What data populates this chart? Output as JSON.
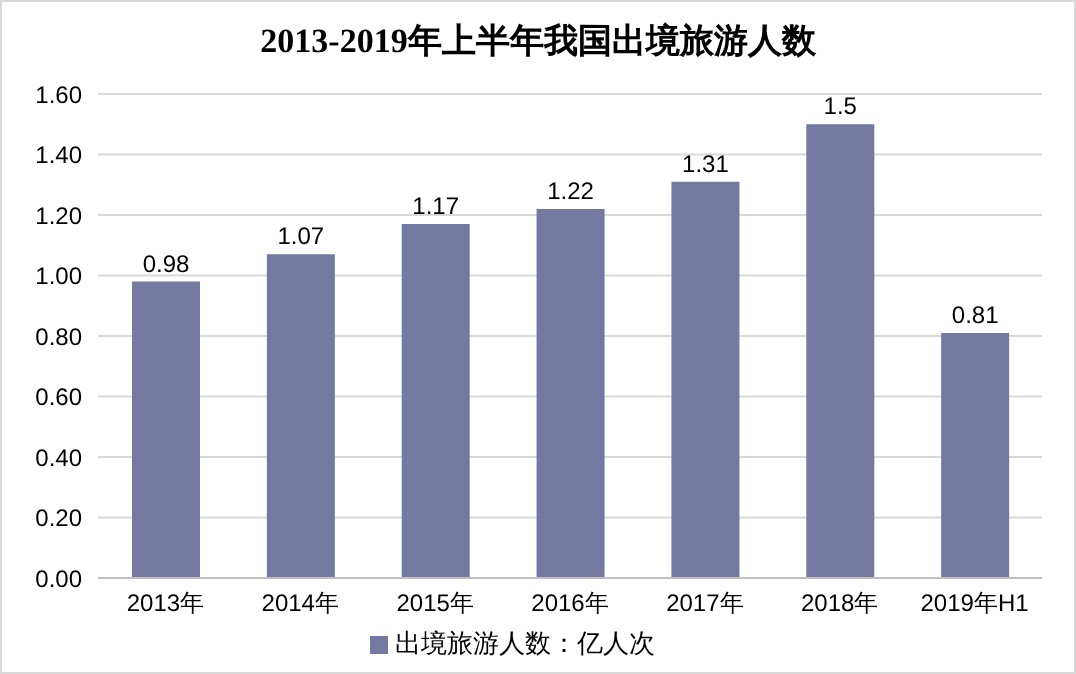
{
  "chart_data": {
    "type": "bar",
    "title": "2013-2019年上半年我国出境旅游人数",
    "categories": [
      "2013年",
      "2014年",
      "2015年",
      "2016年",
      "2017年",
      "2018年",
      "2019年H1"
    ],
    "series": [
      {
        "name": "出境旅游人数：亿人次",
        "color": "#7379a1",
        "values": [
          0.98,
          1.07,
          1.17,
          1.22,
          1.31,
          1.5,
          0.81
        ]
      }
    ],
    "ylim": [
      0,
      1.6
    ],
    "yticks": [
      {
        "value": 0,
        "label": "0.00"
      },
      {
        "value": 0.2,
        "label": "0.20"
      },
      {
        "value": 0.4,
        "label": "0.40"
      },
      {
        "value": 0.6,
        "label": "0.60"
      },
      {
        "value": 0.8,
        "label": "0.80"
      },
      {
        "value": 1,
        "label": "1.00"
      },
      {
        "value": 1.2,
        "label": "1.20"
      },
      {
        "value": 1.4,
        "label": "1.40"
      },
      {
        "value": 1.6,
        "label": "1.60"
      }
    ],
    "grid": "y",
    "legend": "bottom",
    "data_labels": true
  }
}
